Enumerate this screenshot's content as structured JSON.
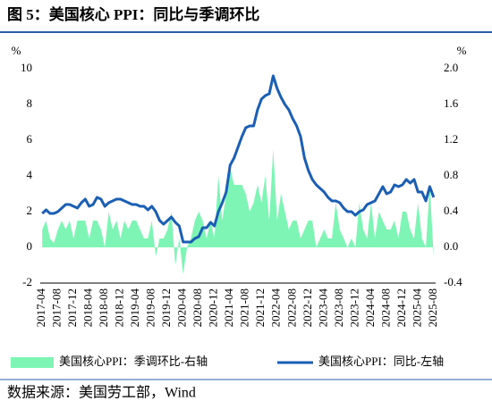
{
  "chart_data": {
    "type": "bar-line",
    "title": "图 5：美国核心 PPI：同比与季调环比",
    "source": "数据来源：美国劳工部，Wind",
    "y_unit": "%",
    "y2_unit": "%",
    "categories": [
      "2017-04",
      null,
      null,
      null,
      "2017-08",
      null,
      null,
      null,
      "2017-12",
      null,
      null,
      null,
      "2018-04",
      null,
      null,
      null,
      "2018-08",
      null,
      null,
      null,
      "2018-12",
      null,
      null,
      null,
      "2019-04",
      null,
      null,
      null,
      "2019-08",
      null,
      null,
      null,
      "2019-12",
      null,
      null,
      null,
      "2020-04",
      null,
      null,
      null,
      "2020-08",
      null,
      null,
      null,
      "2020-12",
      null,
      null,
      null,
      "2021-04",
      null,
      null,
      null,
      "2021-08",
      null,
      null,
      null,
      "2021-12",
      null,
      null,
      null,
      "2022-04",
      null,
      null,
      null,
      "2022-08",
      null,
      null,
      null,
      "2022-12",
      null,
      null,
      null,
      "2023-04",
      null,
      null,
      null,
      "2023-08",
      null,
      null,
      null,
      "2023-12",
      null,
      null,
      null,
      "2024-04",
      null,
      null,
      null,
      "2024-08",
      null,
      null,
      null,
      "2024-12",
      null,
      null,
      null,
      "2025-04",
      null,
      null,
      null,
      "2025-08"
    ],
    "series": [
      {
        "name": "美国核心PPI：季调环比-右轴",
        "color": "#7ff5b5",
        "kind": "area",
        "axis": "y2",
        "values": [
          0.2,
          0.3,
          0.1,
          0.05,
          0.2,
          0.3,
          0.2,
          0.3,
          0.1,
          0.3,
          0.3,
          0.3,
          0.1,
          0.3,
          0.3,
          0.2,
          0.0,
          0.4,
          0.2,
          0.3,
          0.1,
          0.3,
          0.2,
          0.3,
          0.3,
          0.2,
          0.1,
          0.1,
          0.3,
          -0.1,
          0.1,
          0.1,
          0.2,
          0.4,
          -0.2,
          0.1,
          -0.3,
          0.0,
          0.1,
          0.3,
          0.4,
          0.3,
          0.1,
          0.3,
          0.1,
          0.8,
          0.3,
          0.6,
          0.9,
          0.7,
          0.7,
          0.7,
          0.6,
          0.4,
          0.5,
          0.7,
          0.5,
          0.8,
          0.3,
          1.1,
          0.3,
          0.6,
          0.4,
          0.2,
          0.3,
          0.3,
          0.1,
          0.2,
          0.3,
          0.3,
          0.0,
          0.1,
          0.2,
          0.1,
          0.1,
          0.5,
          0.2,
          0.1,
          0.0,
          0.1,
          0.0,
          0.5,
          0.2,
          0.1,
          0.5,
          0.1,
          0.4,
          0.3,
          0.2,
          0.2,
          0.3,
          0.1,
          0.4,
          0.4,
          0.2,
          0.1,
          0.5,
          0.1,
          0.0,
          0.7,
          -0.1
        ]
      },
      {
        "name": "美国核心PPI：同比-左轴",
        "color": "#1a5fb4",
        "kind": "line",
        "axis": "y",
        "values": [
          1.9,
          2.1,
          1.9,
          1.9,
          2.0,
          2.2,
          2.4,
          2.4,
          2.3,
          2.2,
          2.5,
          2.7,
          2.3,
          2.4,
          2.8,
          2.7,
          2.3,
          2.5,
          2.6,
          2.7,
          2.7,
          2.6,
          2.5,
          2.4,
          2.4,
          2.3,
          2.3,
          2.1,
          2.3,
          2.0,
          1.5,
          1.3,
          1.5,
          1.7,
          1.4,
          1.2,
          0.3,
          0.3,
          0.3,
          0.5,
          0.6,
          1.1,
          1.1,
          1.4,
          1.2,
          2.0,
          2.5,
          3.1,
          4.6,
          5.0,
          5.6,
          6.2,
          6.7,
          6.8,
          6.8,
          7.7,
          8.3,
          8.5,
          8.6,
          9.6,
          8.9,
          8.4,
          8.0,
          7.7,
          7.2,
          6.8,
          6.2,
          5.0,
          4.3,
          3.8,
          3.5,
          3.3,
          3.1,
          2.8,
          2.6,
          2.6,
          2.5,
          2.2,
          2.0,
          2.0,
          1.8,
          2.0,
          2.1,
          2.4,
          2.5,
          2.6,
          3.0,
          3.4,
          3.0,
          3.1,
          3.5,
          3.4,
          3.5,
          3.8,
          3.6,
          3.8,
          3.1,
          3.1,
          2.6,
          3.4,
          2.8
        ]
      }
    ],
    "ylim": [
      -2,
      10
    ],
    "yticks": [
      -2,
      0,
      2,
      4,
      6,
      8,
      10
    ],
    "y2lim": [
      -0.4,
      2.0
    ],
    "y2ticks": [
      -0.4,
      {
        "value": 0,
        "label": "0.0"
      },
      0.4,
      0.8,
      1.2,
      1.6,
      {
        "value": 2,
        "label": "2.0"
      }
    ],
    "legend": "bottom"
  }
}
